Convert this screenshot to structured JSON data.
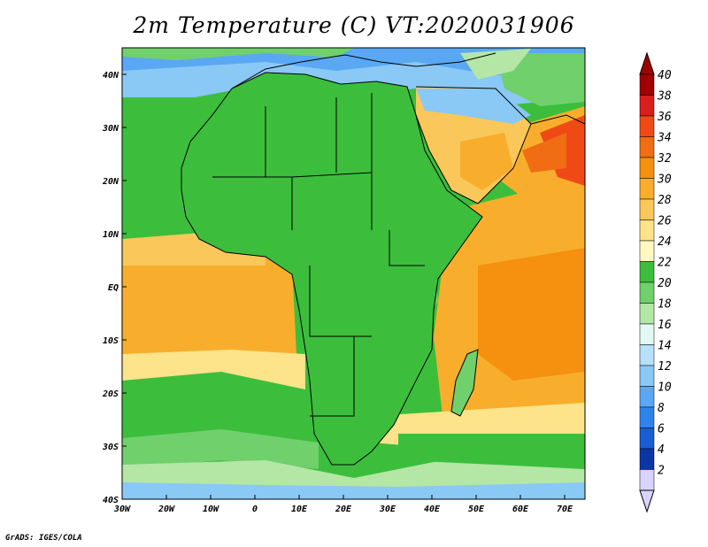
{
  "title": "2m Temperature (C) VT:2020031906",
  "footer": "GrADS: IGES/COLA",
  "map": {
    "region": "Africa",
    "variable": "2m Temperature",
    "units": "C",
    "valid_time": "2020031906",
    "lon_ticks": [
      "30W",
      "20W",
      "10W",
      "0",
      "10E",
      "20E",
      "30E",
      "40E",
      "50E",
      "60E",
      "70E"
    ],
    "lat_ticks": [
      "40N",
      "30N",
      "20N",
      "10N",
      "EQ",
      "10S",
      "20S",
      "30S",
      "40S"
    ],
    "lon_range": [
      -30,
      75
    ],
    "lat_range": [
      -40,
      45
    ]
  },
  "colorbar": {
    "levels": [
      "40",
      "38",
      "36",
      "34",
      "32",
      "30",
      "28",
      "26",
      "24",
      "22",
      "20",
      "18",
      "16",
      "14",
      "12",
      "10",
      "8",
      "6",
      "4",
      "2"
    ],
    "colors": [
      "#a00000",
      "#d81e1e",
      "#ef4a16",
      "#f06d14",
      "#f5910e",
      "#f8ae2c",
      "#f9c75a",
      "#fde38a",
      "#fff8c0",
      "#3cbe3c",
      "#70d06c",
      "#b4e6a6",
      "#e2f8f2",
      "#b8e0fa",
      "#8ac8f6",
      "#5aa8f4",
      "#2e84ea",
      "#1a5cd4",
      "#0c36a6",
      "#d8d4ff"
    ],
    "top_arrow_color": "#a00000",
    "bottom_arrow_color": "#d8d4ff"
  }
}
